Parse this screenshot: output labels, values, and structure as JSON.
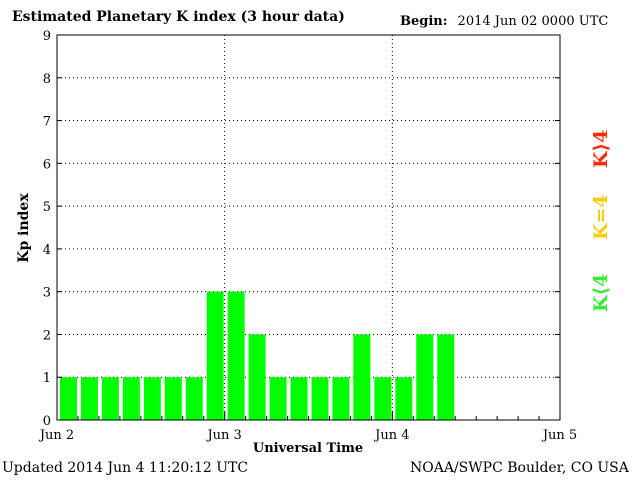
{
  "header": {
    "title": "Estimated Planetary K index (3 hour data)",
    "begin_label": "Begin:",
    "begin_value": "2014 Jun 02 0000 UTC"
  },
  "footer": {
    "updated": "Updated 2014 Jun  4 11:20:12 UTC",
    "credit": "NOAA/SWPC Boulder, CO USA"
  },
  "legend": {
    "high": {
      "label": "K⟩4",
      "color": "#ff2a00"
    },
    "equal": {
      "label": "K=4",
      "color": "#ffcc00"
    },
    "low": {
      "label": "K⟨4",
      "color": "#33ee33"
    }
  },
  "chart_data": {
    "type": "bar",
    "title": "Estimated Planetary K index (3 hour data)",
    "xlabel": "Universal Time",
    "ylabel": "Kp index",
    "ylim": [
      0,
      9
    ],
    "yticks": [
      "0",
      "1",
      "2",
      "3",
      "4",
      "5",
      "6",
      "7",
      "8",
      "9"
    ],
    "xlim": [
      0,
      24
    ],
    "xticks": [
      "Jun 2",
      "Jun 3",
      "Jun 4",
      "Jun 5"
    ],
    "grid": true,
    "bar_color": "#00ff00",
    "values": [
      1,
      1,
      1,
      1,
      1,
      1,
      1,
      3,
      3,
      2,
      1,
      1,
      1,
      1,
      2,
      1,
      1,
      2,
      2
    ]
  }
}
